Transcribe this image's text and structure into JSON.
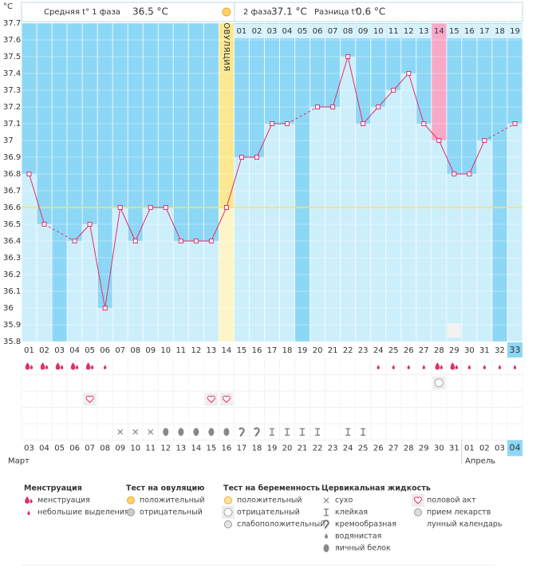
{
  "chart_data": {
    "type": "line",
    "y_label": "°C",
    "header": {
      "phase1": "Средняя t° 1 фаза",
      "phase1_value": "36.5 °C",
      "phase2": "2 фаза",
      "phase2_value": "37.1 °C",
      "diff": "Разница t°",
      "diff_value": "0.6 °C"
    },
    "ylim": [
      35.8,
      37.7
    ],
    "yticks": [
      35.8,
      35.9,
      36,
      36.1,
      36.2,
      36.3,
      36.4,
      36.5,
      36.6,
      36.7,
      36.8,
      36.9,
      37,
      37.1,
      37.2,
      37.3,
      37.4,
      37.5,
      37.6,
      37.7
    ],
    "categories": [
      "01",
      "02",
      "03",
      "04",
      "05",
      "06",
      "07",
      "08",
      "09",
      "10",
      "11",
      "12",
      "13",
      "14",
      "15",
      "16",
      "17",
      "18",
      "19",
      "20",
      "21",
      "22",
      "23",
      "24",
      "25",
      "26",
      "27",
      "28",
      "29",
      "30",
      "31",
      "32",
      "33"
    ],
    "values": [
      36.8,
      36.5,
      null,
      36.4,
      36.5,
      36.0,
      36.6,
      36.4,
      36.6,
      36.6,
      36.4,
      36.4,
      36.4,
      36.6,
      36.9,
      36.9,
      37.1,
      37.1,
      null,
      37.2,
      37.2,
      37.5,
      37.1,
      37.2,
      37.3,
      37.4,
      37.1,
      37.0,
      36.8,
      36.8,
      37.0,
      null,
      37.1
    ],
    "color": "#e0306a",
    "coverline": 36.6,
    "ovulation_day": "14",
    "ovulation_label": "ОВУЛЯЦИЯ",
    "phase2_days": [
      "01",
      "02",
      "03",
      "04",
      "05",
      "06",
      "07",
      "08",
      "09",
      "10",
      "11",
      "12",
      "13",
      "14",
      "15",
      "16",
      "17",
      "18",
      "19"
    ],
    "phase2_highlight": "14",
    "today": "33",
    "dates": [
      "03",
      "04",
      "05",
      "06",
      "07",
      "08",
      "09",
      "10",
      "11",
      "12",
      "13",
      "14",
      "15",
      "16",
      "17",
      "18",
      "19",
      "20",
      "21",
      "22",
      "23",
      "24",
      "25",
      "26",
      "27",
      "28",
      "29",
      "30",
      "31",
      "01",
      "02",
      "03",
      "04"
    ],
    "weekends": [
      false,
      false,
      false,
      false,
      false,
      true,
      true,
      false,
      false,
      false,
      false,
      false,
      true,
      true,
      false,
      false,
      false,
      false,
      false,
      true,
      true,
      false,
      false,
      false,
      false,
      false,
      true,
      true,
      false,
      false,
      false,
      false,
      false
    ],
    "months": [
      "Март",
      "Апрель"
    ],
    "moon": [
      null,
      null,
      null,
      null,
      null,
      null,
      null,
      null,
      null,
      null,
      null,
      null,
      null,
      null,
      null,
      null,
      null,
      null,
      null,
      null,
      null,
      null,
      null,
      null,
      null,
      null,
      null,
      null,
      "лунный календарь",
      null,
      null,
      null,
      null
    ],
    "marker_rows": [
      {
        "group": "Менструация",
        "days": [
          "менструация",
          "менструация",
          "менструация",
          "менструация",
          "менструация",
          "небольшие выделения",
          null,
          null,
          null,
          null,
          null,
          null,
          null,
          null,
          null,
          null,
          null,
          null,
          null,
          null,
          null,
          null,
          null,
          "небольшие выделения",
          "небольшие выделения",
          "небольшие выделения",
          "небольшие выделения",
          "менструация",
          "менструация",
          "небольшие выделения",
          "небольшие выделения",
          "небольшие выделения",
          "небольшие выделения"
        ]
      },
      {
        "group": "Тест на беременность",
        "days": [
          null,
          null,
          null,
          null,
          null,
          null,
          null,
          null,
          null,
          null,
          null,
          null,
          null,
          null,
          null,
          null,
          null,
          null,
          null,
          null,
          null,
          null,
          null,
          null,
          null,
          null,
          null,
          "отрицательный",
          null,
          null,
          null,
          null,
          null
        ]
      },
      {
        "days": [
          null,
          null,
          null,
          null,
          "половой акт",
          null,
          null,
          null,
          null,
          null,
          null,
          null,
          "половой акт",
          "половой акт",
          null,
          null,
          null,
          null,
          null,
          null,
          null,
          null,
          null,
          null,
          null,
          null,
          null,
          null,
          null,
          null,
          null,
          null,
          null
        ]
      },
      {
        "days": [
          null,
          null,
          null,
          null,
          null,
          null,
          null,
          null,
          null,
          null,
          null,
          null,
          null,
          null,
          null,
          null,
          null,
          null,
          null,
          null,
          null,
          null,
          null,
          null,
          null,
          null,
          null,
          null,
          null,
          null,
          null,
          null,
          null
        ]
      },
      {
        "group": "Цервикальная жидкость",
        "days": [
          null,
          null,
          null,
          null,
          null,
          null,
          "сухо",
          "сухо",
          "сухо",
          "яичный белок",
          "яичный белок",
          "яичный белок",
          "яичный белок",
          "яичный белок",
          "кремообразная",
          "кремообразная",
          "клейкая",
          "клейкая",
          "клейкая",
          "клейкая",
          null,
          "клейкая",
          "клейкая",
          null,
          null,
          null,
          null,
          null,
          null,
          null,
          null,
          null,
          null
        ]
      }
    ],
    "legend": [
      {
        "title": "Менструация",
        "items": [
          "менструация",
          "небольшие выделения"
        ]
      },
      {
        "title": "Тест на овуляцию",
        "items": [
          "положительный",
          "отрицательный"
        ]
      },
      {
        "title": "Тест на беременность",
        "items": [
          "положительный",
          "отрицательный",
          "слабоположительный"
        ]
      },
      {
        "title": "Цервикальная жидкость",
        "items": [
          "сухо",
          "клейкая",
          "кремообразная",
          "водянистая",
          "яичный белок"
        ]
      },
      {
        "items": [
          "половой акт",
          "прием лекарств",
          "лунный календарь"
        ]
      }
    ]
  }
}
